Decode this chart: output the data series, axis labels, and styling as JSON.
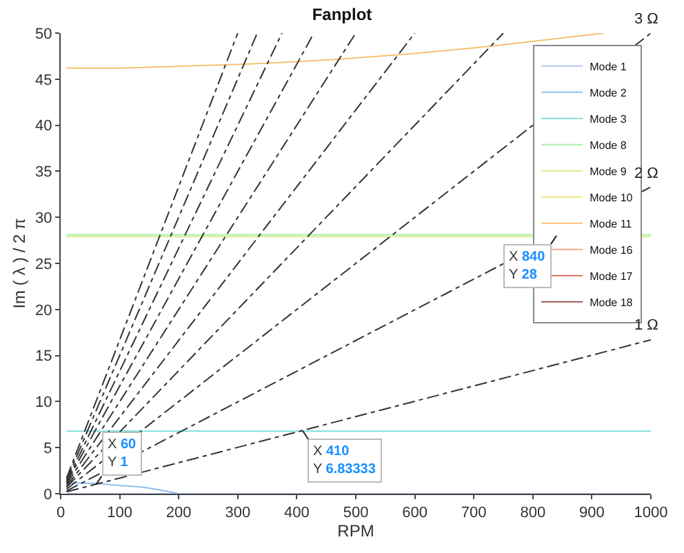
{
  "chart_data": {
    "type": "line",
    "title": "Fanplot",
    "xlabel": "RPM",
    "ylabel": "Im ( λ ) / 2 π",
    "xlim": [
      0,
      1000
    ],
    "ylim": [
      0,
      50
    ],
    "xticks": [
      0,
      100,
      200,
      300,
      400,
      500,
      600,
      700,
      800,
      900,
      1000
    ],
    "yticks": [
      0,
      5,
      10,
      15,
      20,
      25,
      30,
      35,
      40,
      45,
      50
    ],
    "legend": "top right",
    "series": [
      {
        "name": "Mode 1",
        "color": "#b3c6ee",
        "x": [
          10,
          1000
        ],
        "values": [
          0,
          0
        ]
      },
      {
        "name": "Mode 2",
        "color": "#8fbfef",
        "x": [
          10,
          60,
          100,
          150,
          200
        ],
        "values": [
          1.2,
          1.1,
          0.9,
          0.6,
          0
        ]
      },
      {
        "name": "Mode 3",
        "color": "#7fe0d8",
        "x": [
          10,
          1000
        ],
        "values": [
          6.8,
          6.8
        ]
      },
      {
        "name": "Mode 8",
        "color": "#a8f0a8",
        "x": [
          10,
          1000
        ],
        "values": [
          28.1,
          28.1
        ]
      },
      {
        "name": "Mode 9",
        "color": "#d4f08a",
        "x": [
          10,
          1000
        ],
        "values": [
          27.9,
          27.9
        ]
      },
      {
        "name": "Mode 10",
        "color": "#f0e87a",
        "values": [
          null
        ]
      },
      {
        "name": "Mode 11",
        "color": "#f8c070",
        "x": [
          10,
          100,
          200,
          300,
          400,
          500,
          600,
          700,
          800,
          920
        ],
        "values": [
          46.2,
          46.2,
          46.4,
          46.6,
          46.9,
          47.3,
          47.8,
          48.4,
          49.1,
          50
        ]
      },
      {
        "name": "Mode 16",
        "color": "#f0a890",
        "values": [
          null
        ]
      },
      {
        "name": "Mode 17",
        "color": "#d87060",
        "values": [
          null
        ]
      },
      {
        "name": "Mode 18",
        "color": "#a05a50",
        "values": [
          null
        ]
      },
      {
        "color": "#333333",
        "line_style": "dashed",
        "x": [
          10,
          1000
        ],
        "values": [
          0.2,
          16.7
        ]
      },
      {
        "color": "#333333",
        "line_style": "dashed",
        "x": [
          10,
          1000
        ],
        "values": [
          0.3,
          33.3
        ]
      },
      {
        "color": "#333333",
        "line_style": "dashed",
        "x": [
          10,
          1000
        ],
        "values": [
          0.5,
          50
        ]
      },
      {
        "color": "#333333",
        "line_style": "dashed",
        "x": [
          10,
          750
        ],
        "values": [
          0.7,
          50
        ]
      },
      {
        "color": "#333333",
        "line_style": "dashed",
        "x": [
          10,
          600
        ],
        "values": [
          0.8,
          50
        ]
      },
      {
        "color": "#333333",
        "line_style": "dashed",
        "x": [
          10,
          500
        ],
        "values": [
          1,
          50
        ]
      },
      {
        "color": "#333333",
        "line_style": "dashed",
        "x": [
          10,
          429
        ],
        "values": [
          1.2,
          50
        ]
      },
      {
        "color": "#333333",
        "line_style": "dashed",
        "x": [
          10,
          375
        ],
        "values": [
          1.3,
          50
        ]
      },
      {
        "color": "#333333",
        "line_style": "dashed",
        "x": [
          10,
          333
        ],
        "values": [
          1.5,
          50
        ]
      },
      {
        "color": "#333333",
        "line_style": "dashed",
        "x": [
          10,
          300
        ],
        "values": [
          1.7,
          50
        ]
      }
    ],
    "annotations": [
      {
        "text": "1 Ω",
        "x": 1000,
        "y": 16.7
      },
      {
        "text": "2 Ω",
        "x": 1000,
        "y": 33.3
      },
      {
        "text": "3 Ω",
        "x": 1000,
        "y": 50
      },
      {
        "text": "X 60\nY 1",
        "x": 60,
        "y": 1
      },
      {
        "text": "X 410\nY 6.83333",
        "x": 410,
        "y": 6.83333
      },
      {
        "text": "X 840\nY 28",
        "x": 840,
        "y": 28
      }
    ]
  }
}
